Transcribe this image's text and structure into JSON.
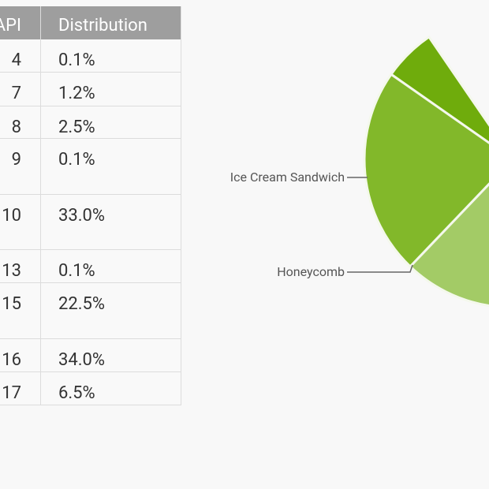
{
  "table": {
    "headers": {
      "api": "API",
      "distribution": "Distribution"
    },
    "rows": [
      {
        "api": "4",
        "distribution": "0.1%"
      },
      {
        "api": "7",
        "distribution": "1.2%"
      },
      {
        "api": "8",
        "distribution": "2.5%"
      },
      {
        "api": "9",
        "distribution": "0.1%"
      },
      {
        "api": "10",
        "distribution": "33.0%"
      },
      {
        "api": "13",
        "distribution": "0.1%"
      },
      {
        "api": "15",
        "distribution": "22.5%"
      },
      {
        "api": "16",
        "distribution": "34.0%"
      },
      {
        "api": "17",
        "distribution": "6.5%"
      }
    ]
  },
  "chart_data": {
    "type": "pie",
    "labels": [
      "Ice Cream Sandwich",
      "Honeycomb"
    ],
    "colors": [
      "#6fac0c",
      "#82b82a",
      "#a3cb66"
    ]
  }
}
